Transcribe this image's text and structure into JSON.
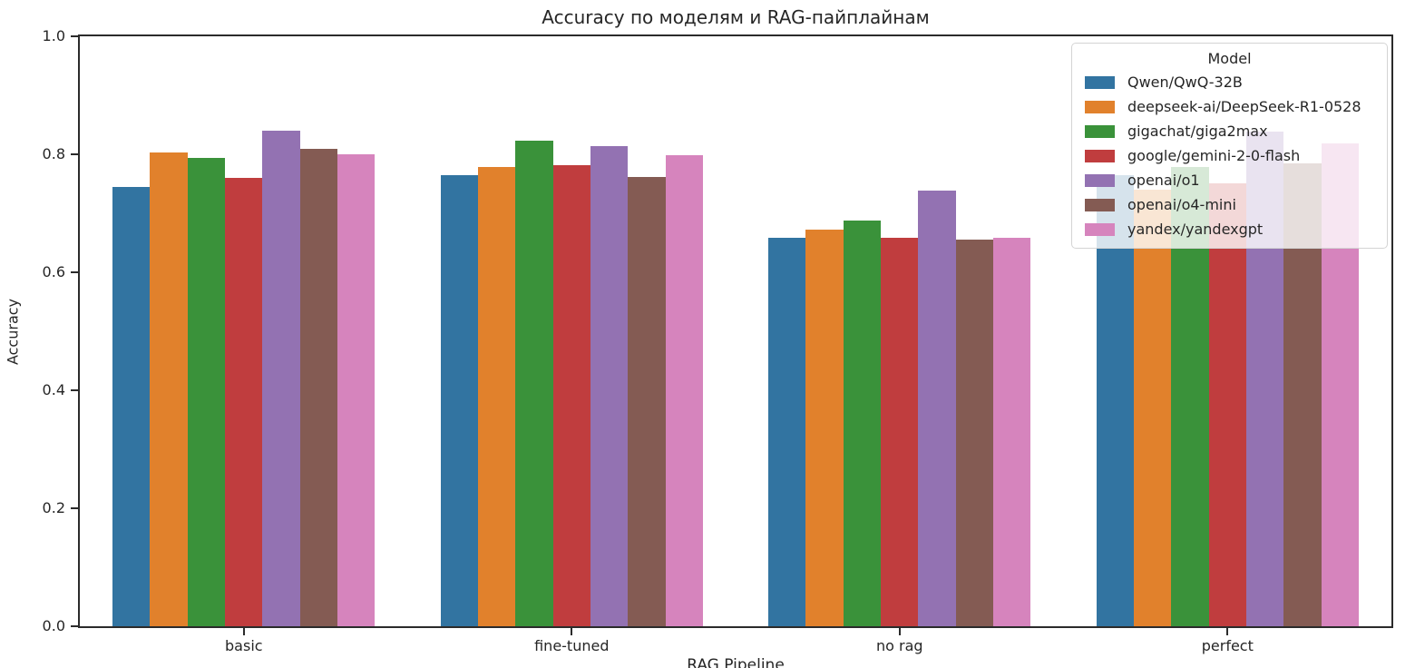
{
  "chart_data": {
    "type": "bar",
    "title": "Accuracy по моделям и RAG-пайплайнам",
    "xlabel": "RAG Pipeline",
    "ylabel": "Accuracy",
    "legend_title": "Model",
    "legend_position": "upper right",
    "grid": false,
    "background_color": "#ffffff",
    "categories": [
      "basic",
      "fine-tuned",
      "no rag",
      "perfect"
    ],
    "ylim": [
      0.0,
      1.0
    ],
    "yticks": [
      0.0,
      0.2,
      0.4,
      0.6,
      0.8,
      1.0
    ],
    "series": [
      {
        "name": "Qwen/QwQ-32B",
        "color": "#3274a1",
        "values": [
          0.745,
          0.765,
          0.658,
          0.765
        ]
      },
      {
        "name": "deepseek-ai/DeepSeek-R1-0528",
        "color": "#e1812c",
        "values": [
          0.803,
          0.778,
          0.673,
          0.74
        ]
      },
      {
        "name": "gigachat/giga2max",
        "color": "#3a923a",
        "values": [
          0.794,
          0.823,
          0.688,
          0.778
        ]
      },
      {
        "name": "google/gemini-2-0-flash",
        "color": "#c03d3e",
        "values": [
          0.76,
          0.781,
          0.658,
          0.751
        ]
      },
      {
        "name": "openai/o1",
        "color": "#9372b2",
        "values": [
          0.84,
          0.814,
          0.739,
          0.838
        ]
      },
      {
        "name": "openai/o4-mini",
        "color": "#845b53",
        "values": [
          0.809,
          0.761,
          0.656,
          0.785
        ]
      },
      {
        "name": "yandex/yandexgpt",
        "color": "#d684bd",
        "values": [
          0.8,
          0.799,
          0.659,
          0.818
        ]
      }
    ]
  }
}
